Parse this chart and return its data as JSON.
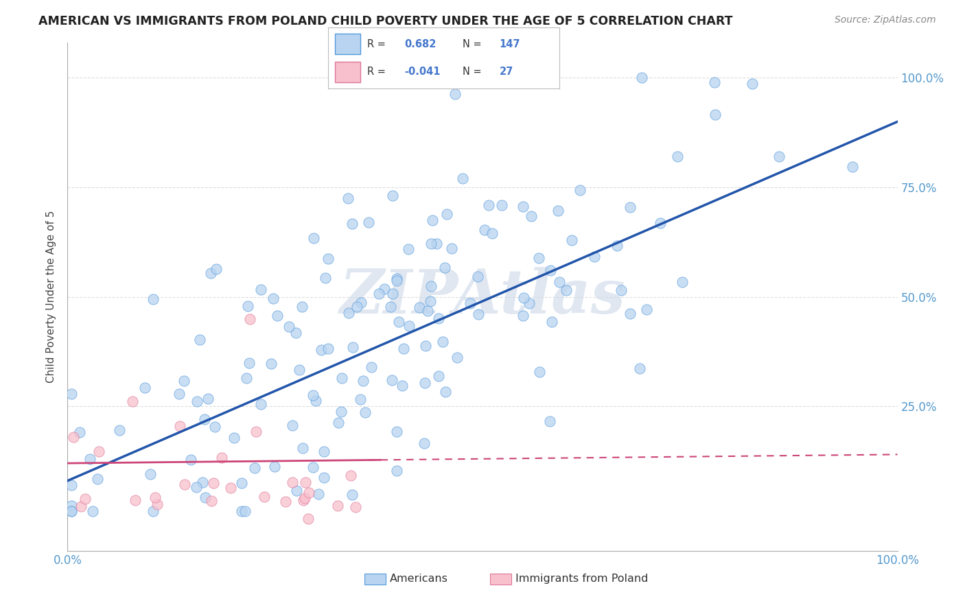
{
  "title": "AMERICAN VS IMMIGRANTS FROM POLAND CHILD POVERTY UNDER THE AGE OF 5 CORRELATION CHART",
  "source": "Source: ZipAtlas.com",
  "ylabel": "Child Poverty Under the Age of 5",
  "american_R": 0.682,
  "american_N": 147,
  "poland_R": -0.041,
  "poland_N": 27,
  "american_color": "#b8d4f0",
  "american_edge_color": "#5599dd",
  "american_line_color": "#2255aa",
  "poland_color": "#f8c0cc",
  "poland_edge_color": "#dd7799",
  "poland_line_color": "#cc4477",
  "background_color": "#ffffff",
  "grid_color": "#dddddd",
  "watermark_color": "#ccd8e8",
  "xlim": [
    0.0,
    1.0
  ],
  "ylim": [
    -0.08,
    1.08
  ],
  "legend_R_color": "#4477cc",
  "legend_text_color": "#333333"
}
